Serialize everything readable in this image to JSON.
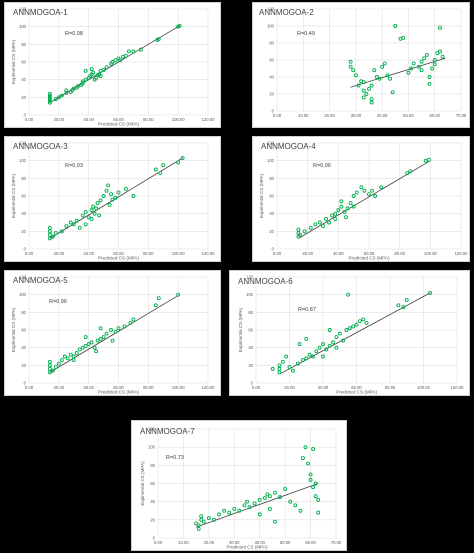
{
  "chart_data": [
    {
      "type": "scatter",
      "title": "ANNMOGOA-1",
      "r_label": "R=0.98",
      "xlabel": "Predicted CS (MPA)",
      "ylabel": "Expimental CS (MPA)",
      "xlim": [
        0,
        120
      ],
      "ylim": [
        0,
        120
      ],
      "x_ticks": [
        "0.00",
        "20.00",
        "40.00",
        "60.00",
        "80.00",
        "100.00",
        "120.00"
      ],
      "y_ticks": [
        "0",
        "20",
        "40",
        "60",
        "80",
        "100",
        "120"
      ],
      "marker_color": "#00b050",
      "trendline_color": "#404040",
      "grid": true,
      "trendline": [
        [
          14,
          14
        ],
        [
          101,
          101
        ]
      ],
      "points": [
        [
          14,
          14
        ],
        [
          14,
          16
        ],
        [
          14,
          18
        ],
        [
          14,
          20
        ],
        [
          14,
          22
        ],
        [
          14,
          24
        ],
        [
          18,
          18
        ],
        [
          20,
          20
        ],
        [
          22,
          22
        ],
        [
          25,
          25
        ],
        [
          28,
          26
        ],
        [
          29,
          28
        ],
        [
          30,
          30
        ],
        [
          32,
          31
        ],
        [
          33,
          33
        ],
        [
          35,
          34
        ],
        [
          36,
          38
        ],
        [
          38,
          40
        ],
        [
          40,
          42
        ],
        [
          41,
          44
        ],
        [
          42,
          46
        ],
        [
          43,
          48
        ],
        [
          44,
          40
        ],
        [
          45,
          42
        ],
        [
          46,
          45
        ],
        [
          47,
          46
        ],
        [
          48,
          50
        ],
        [
          50,
          51
        ],
        [
          52,
          54
        ],
        [
          55,
          58
        ],
        [
          56,
          60
        ],
        [
          58,
          62
        ],
        [
          60,
          64
        ],
        [
          61,
          62
        ],
        [
          63,
          66
        ],
        [
          65,
          67
        ],
        [
          67,
          72
        ],
        [
          70,
          72
        ],
        [
          75,
          74
        ],
        [
          86,
          85
        ],
        [
          87,
          86
        ],
        [
          100,
          100
        ],
        [
          101,
          101
        ],
        [
          42,
          52
        ],
        [
          38,
          50
        ],
        [
          36,
          36
        ],
        [
          25,
          28
        ],
        [
          48,
          44
        ]
      ]
    },
    {
      "type": "scatter",
      "title": "ANNMOGOA-2",
      "r_label": "R=0.49",
      "xlabel": "",
      "ylabel": "",
      "xlim": [
        0,
        70
      ],
      "ylim": [
        0,
        120
      ],
      "x_ticks": [
        "0.00",
        "10.00",
        "20.00",
        "30.00",
        "40.00",
        "50.00",
        "60.00",
        "70.00"
      ],
      "y_ticks": [
        "0",
        "20",
        "40",
        "60",
        "80",
        "100",
        "120"
      ],
      "marker_color": "#00b050",
      "trendline_color": "#404040",
      "grid": true,
      "trendline": [
        [
          28,
          28
        ],
        [
          64,
          62
        ]
      ],
      "points": [
        [
          28,
          52
        ],
        [
          28,
          58
        ],
        [
          29,
          48
        ],
        [
          30,
          42
        ],
        [
          31,
          30
        ],
        [
          32,
          35
        ],
        [
          33,
          16
        ],
        [
          33,
          24
        ],
        [
          34,
          20
        ],
        [
          35,
          26
        ],
        [
          36,
          10
        ],
        [
          36,
          14
        ],
        [
          36,
          30
        ],
        [
          37,
          48
        ],
        [
          38,
          40
        ],
        [
          39,
          38
        ],
        [
          40,
          52
        ],
        [
          41,
          56
        ],
        [
          42,
          42
        ],
        [
          43,
          38
        ],
        [
          45,
          100
        ],
        [
          47,
          85
        ],
        [
          48,
          86
        ],
        [
          50,
          45
        ],
        [
          51,
          50
        ],
        [
          52,
          56
        ],
        [
          54,
          52
        ],
        [
          55,
          58
        ],
        [
          56,
          62
        ],
        [
          57,
          66
        ],
        [
          58,
          40
        ],
        [
          58,
          32
        ],
        [
          59,
          50
        ],
        [
          60,
          60
        ],
        [
          61,
          68
        ],
        [
          62,
          98
        ],
        [
          62,
          70
        ],
        [
          63,
          64
        ],
        [
          60,
          55
        ],
        [
          55,
          48
        ],
        [
          44,
          22
        ],
        [
          33,
          34
        ]
      ]
    },
    {
      "type": "scatter",
      "title": "ANNMOGOA-3",
      "r_label": "R=0.93",
      "xlabel": "Predicted CS (MPA)",
      "ylabel": "Expimental CS (MPA)",
      "xlim": [
        0,
        120
      ],
      "ylim": [
        0,
        120
      ],
      "x_ticks": [
        "0.00",
        "20.00",
        "40.00",
        "60.00",
        "80.00",
        "100.00",
        "120.00"
      ],
      "y_ticks": [
        "0",
        "20",
        "40",
        "60",
        "80",
        "100",
        "120"
      ],
      "marker_color": "#00b050",
      "trendline_color": "#404040",
      "grid": true,
      "trendline": [
        [
          14,
          12
        ],
        [
          103,
          103
        ]
      ],
      "points": [
        [
          14,
          12
        ],
        [
          14,
          16
        ],
        [
          14,
          20
        ],
        [
          14,
          24
        ],
        [
          16,
          14
        ],
        [
          18,
          18
        ],
        [
          22,
          20
        ],
        [
          25,
          26
        ],
        [
          28,
          30
        ],
        [
          30,
          28
        ],
        [
          32,
          32
        ],
        [
          34,
          24
        ],
        [
          36,
          38
        ],
        [
          38,
          42
        ],
        [
          40,
          36
        ],
        [
          42,
          44
        ],
        [
          43,
          48
        ],
        [
          44,
          40
        ],
        [
          45,
          46
        ],
        [
          46,
          52
        ],
        [
          48,
          55
        ],
        [
          50,
          60
        ],
        [
          52,
          66
        ],
        [
          53,
          72
        ],
        [
          55,
          62
        ],
        [
          56,
          56
        ],
        [
          58,
          58
        ],
        [
          60,
          64
        ],
        [
          65,
          68
        ],
        [
          70,
          60
        ],
        [
          85,
          90
        ],
        [
          88,
          86
        ],
        [
          90,
          95
        ],
        [
          100,
          98
        ],
        [
          103,
          103
        ],
        [
          38,
          28
        ],
        [
          42,
          34
        ],
        [
          47,
          38
        ],
        [
          54,
          50
        ]
      ]
    },
    {
      "type": "scatter",
      "title": "ANNMOGOA-4",
      "r_label": "R=0.96",
      "xlabel": "Predicted CS (MPA)",
      "ylabel": "Expimental CS (MPA)",
      "xlim": [
        0,
        120
      ],
      "ylim": [
        0,
        120
      ],
      "x_ticks": [
        "0.00",
        "20.00",
        "40.00",
        "60.00",
        "80.00",
        "100.00",
        "120.00"
      ],
      "y_ticks": [
        "0",
        "20",
        "40",
        "60",
        "80",
        "100",
        "120"
      ],
      "marker_color": "#00b050",
      "trendline_color": "#404040",
      "grid": true,
      "trendline": [
        [
          14,
          12
        ],
        [
          100,
          100
        ]
      ],
      "points": [
        [
          14,
          14
        ],
        [
          14,
          18
        ],
        [
          14,
          22
        ],
        [
          15,
          16
        ],
        [
          18,
          20
        ],
        [
          22,
          24
        ],
        [
          25,
          28
        ],
        [
          28,
          30
        ],
        [
          30,
          26
        ],
        [
          32,
          34
        ],
        [
          34,
          30
        ],
        [
          36,
          38
        ],
        [
          38,
          40
        ],
        [
          40,
          44
        ],
        [
          42,
          48
        ],
        [
          44,
          42
        ],
        [
          46,
          46
        ],
        [
          48,
          52
        ],
        [
          50,
          60
        ],
        [
          52,
          64
        ],
        [
          55,
          70
        ],
        [
          57,
          66
        ],
        [
          60,
          62
        ],
        [
          62,
          66
        ],
        [
          64,
          60
        ],
        [
          68,
          70
        ],
        [
          85,
          86
        ],
        [
          87,
          88
        ],
        [
          97,
          100
        ],
        [
          99,
          101
        ],
        [
          45,
          36
        ],
        [
          38,
          34
        ],
        [
          50,
          48
        ],
        [
          42,
          54
        ]
      ]
    },
    {
      "type": "scatter",
      "title": "ANNMOGOA-5",
      "r_label": "R=0.96",
      "xlabel": "Predicted CS (MPA)",
      "ylabel": "Expimental CS (MPA)",
      "xlim": [
        0,
        120
      ],
      "ylim": [
        0,
        120
      ],
      "x_ticks": [
        "0.00",
        "20.00",
        "40.00",
        "60.00",
        "80.00",
        "100.00",
        "120.00"
      ],
      "y_ticks": [
        "0",
        "20",
        "40",
        "60",
        "80",
        "100",
        "120"
      ],
      "marker_color": "#00b050",
      "trendline_color": "#404040",
      "grid": true,
      "trendline": [
        [
          14,
          12
        ],
        [
          100,
          99
        ]
      ],
      "points": [
        [
          14,
          12
        ],
        [
          14,
          16
        ],
        [
          14,
          20
        ],
        [
          14,
          24
        ],
        [
          16,
          14
        ],
        [
          18,
          18
        ],
        [
          20,
          22
        ],
        [
          22,
          26
        ],
        [
          24,
          30
        ],
        [
          26,
          28
        ],
        [
          28,
          32
        ],
        [
          30,
          30
        ],
        [
          32,
          34
        ],
        [
          34,
          38
        ],
        [
          36,
          40
        ],
        [
          38,
          42
        ],
        [
          40,
          44
        ],
        [
          42,
          46
        ],
        [
          44,
          40
        ],
        [
          46,
          48
        ],
        [
          48,
          50
        ],
        [
          50,
          52
        ],
        [
          52,
          56
        ],
        [
          55,
          60
        ],
        [
          56,
          48
        ],
        [
          58,
          58
        ],
        [
          60,
          62
        ],
        [
          64,
          64
        ],
        [
          68,
          68
        ],
        [
          70,
          72
        ],
        [
          85,
          88
        ],
        [
          87,
          96
        ],
        [
          100,
          100
        ],
        [
          38,
          52
        ],
        [
          45,
          36
        ],
        [
          30,
          26
        ],
        [
          48,
          62
        ]
      ]
    },
    {
      "type": "scatter",
      "title": "ANNMOGOA-6",
      "r_label": "R=0.87",
      "xlabel": "Predicted CS (MPA)",
      "ylabel": "Expimental CS (MPA)",
      "xlim": [
        0,
        120
      ],
      "ylim": [
        0,
        120
      ],
      "x_ticks": [
        "0.00",
        "20.00",
        "40.00",
        "60.00",
        "80.00",
        "100.00",
        "120.00"
      ],
      "y_ticks": [
        "0",
        "20",
        "40",
        "60",
        "80",
        "100",
        "120"
      ],
      "marker_color": "#00b050",
      "trendline_color": "#404040",
      "grid": true,
      "trendline": [
        [
          14,
          10
        ],
        [
          104,
          102
        ]
      ],
      "points": [
        [
          10,
          16
        ],
        [
          14,
          12
        ],
        [
          14,
          16
        ],
        [
          14,
          20
        ],
        [
          16,
          24
        ],
        [
          18,
          30
        ],
        [
          20,
          18
        ],
        [
          22,
          14
        ],
        [
          25,
          22
        ],
        [
          28,
          26
        ],
        [
          30,
          28
        ],
        [
          32,
          32
        ],
        [
          34,
          30
        ],
        [
          36,
          36
        ],
        [
          38,
          40
        ],
        [
          40,
          44
        ],
        [
          42,
          38
        ],
        [
          44,
          42
        ],
        [
          46,
          46
        ],
        [
          48,
          52
        ],
        [
          50,
          56
        ],
        [
          52,
          48
        ],
        [
          54,
          60
        ],
        [
          55,
          100
        ],
        [
          56,
          62
        ],
        [
          58,
          64
        ],
        [
          60,
          66
        ],
        [
          62,
          70
        ],
        [
          64,
          72
        ],
        [
          66,
          68
        ],
        [
          85,
          88
        ],
        [
          88,
          86
        ],
        [
          90,
          94
        ],
        [
          104,
          102
        ],
        [
          26,
          44
        ],
        [
          30,
          50
        ],
        [
          48,
          40
        ],
        [
          40,
          30
        ],
        [
          44,
          60
        ]
      ]
    },
    {
      "type": "scatter",
      "title": "ANNMOGOA-7",
      "r_label": "R=0.73",
      "xlabel": "Predicted CS (MPA)",
      "ylabel": "Expimental CS (MPA)",
      "xlim": [
        0,
        70
      ],
      "ylim": [
        0,
        120
      ],
      "x_ticks": [
        "0.00",
        "10.00",
        "20.00",
        "30.00",
        "40.00",
        "50.00",
        "60.00",
        "70.00"
      ],
      "y_ticks": [
        "0",
        "20",
        "40",
        "60",
        "80",
        "100",
        "120"
      ],
      "marker_color": "#00b050",
      "trendline_color": "#404040",
      "grid": true,
      "trendline": [
        [
          15,
          12
        ],
        [
          63,
          60
        ]
      ],
      "points": [
        [
          15,
          16
        ],
        [
          16,
          10
        ],
        [
          16,
          14
        ],
        [
          17,
          20
        ],
        [
          17,
          24
        ],
        [
          18,
          18
        ],
        [
          20,
          22
        ],
        [
          22,
          20
        ],
        [
          24,
          26
        ],
        [
          26,
          30
        ],
        [
          28,
          28
        ],
        [
          30,
          32
        ],
        [
          32,
          30
        ],
        [
          34,
          36
        ],
        [
          35,
          40
        ],
        [
          36,
          34
        ],
        [
          38,
          38
        ],
        [
          40,
          42
        ],
        [
          42,
          44
        ],
        [
          43,
          48
        ],
        [
          44,
          46
        ],
        [
          46,
          50
        ],
        [
          48,
          45
        ],
        [
          50,
          54
        ],
        [
          52,
          40
        ],
        [
          54,
          36
        ],
        [
          56,
          30
        ],
        [
          57,
          88
        ],
        [
          58,
          100
        ],
        [
          59,
          82
        ],
        [
          60,
          64
        ],
        [
          60,
          70
        ],
        [
          61,
          98
        ],
        [
          61,
          56
        ],
        [
          62,
          60
        ],
        [
          62,
          46
        ],
        [
          63,
          42
        ],
        [
          63,
          28
        ],
        [
          40,
          26
        ],
        [
          46,
          18
        ],
        [
          44,
          32
        ]
      ]
    }
  ]
}
